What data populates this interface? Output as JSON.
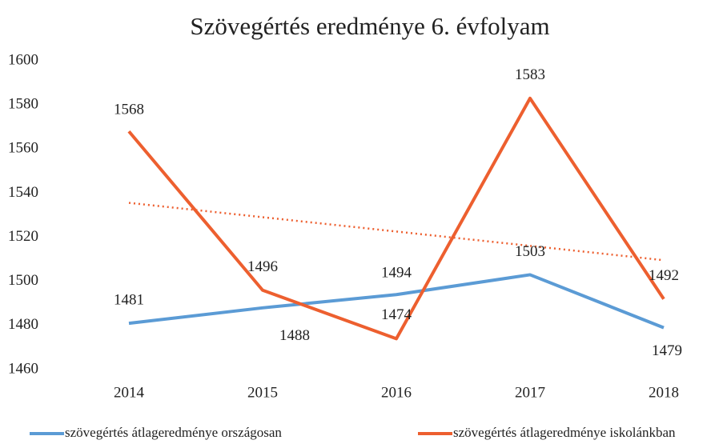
{
  "chart_data": {
    "type": "line",
    "title": "Szövegértés eredménye 6. évfolyam",
    "categories": [
      "2014",
      "2015",
      "2016",
      "2017",
      "2018"
    ],
    "series": [
      {
        "name": "szövegértés átlageredménye országosan",
        "color": "#5b9bd5",
        "values": [
          1481,
          1488,
          1494,
          1503,
          1479
        ]
      },
      {
        "name": "szövegértés átlageredménye iskolánkban",
        "color": "#ed5f2f",
        "values": [
          1568,
          1496,
          1474,
          1583,
          1492
        ],
        "trendline": true
      }
    ],
    "ylim": [
      1460,
      1600
    ],
    "yticks": [
      1460,
      1480,
      1500,
      1520,
      1540,
      1560,
      1580,
      1600
    ],
    "grid": false,
    "data_labels": true,
    "legend": "bottom"
  }
}
